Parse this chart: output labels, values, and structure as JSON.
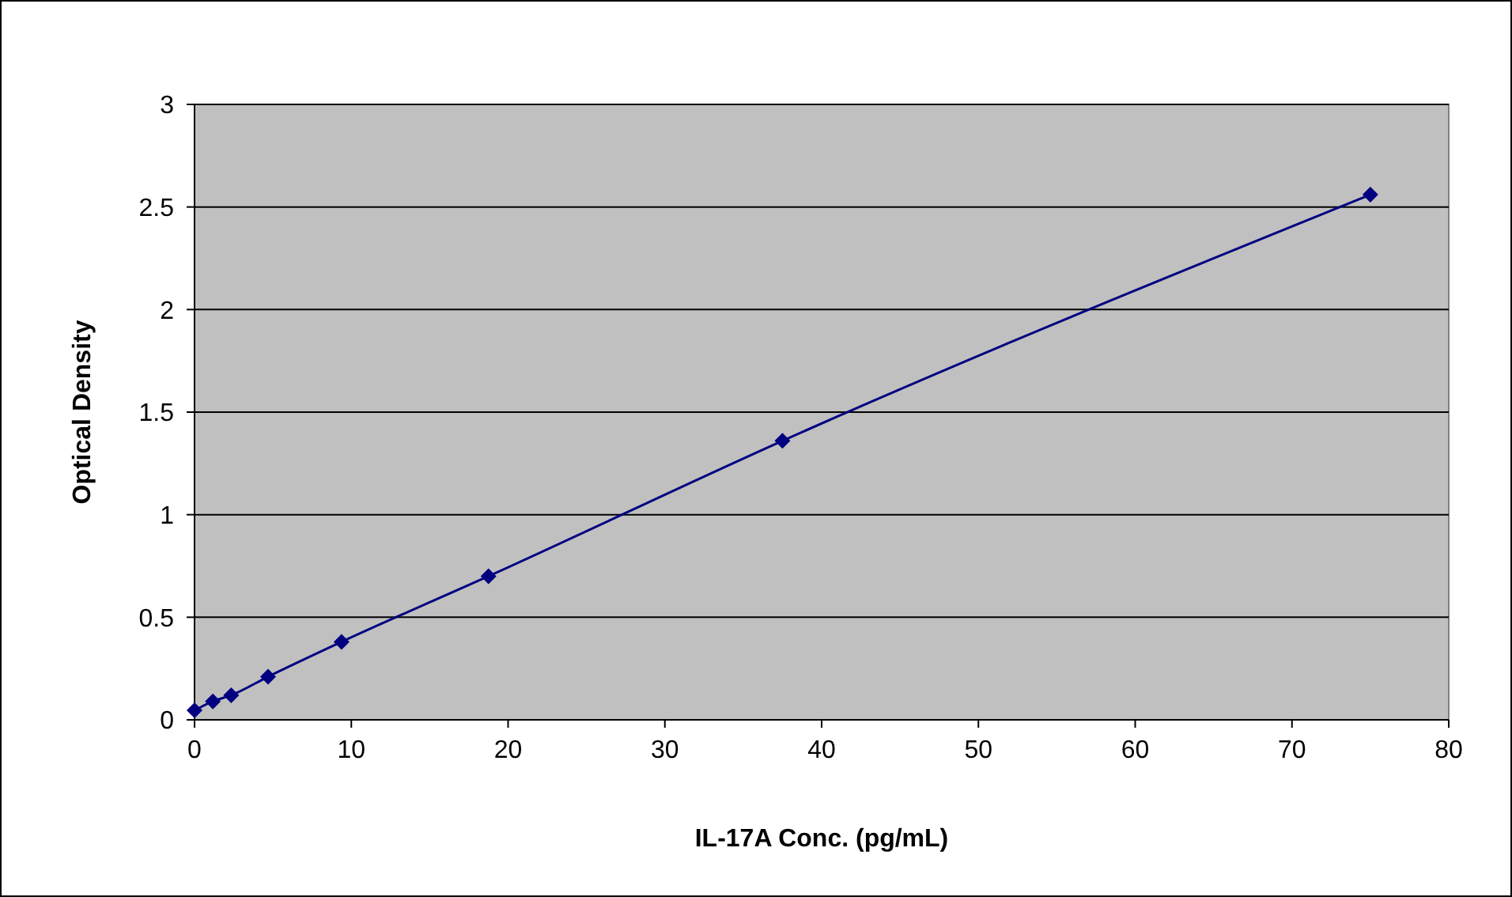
{
  "chart_data": {
    "type": "line",
    "xlabel": "IL-17A Conc. (pg/mL)",
    "ylabel": "Optical Density",
    "x": [
      0,
      1.17,
      2.34,
      4.69,
      9.38,
      18.75,
      37.5,
      75
    ],
    "series": [
      {
        "color": "#000080",
        "values": [
          0.046,
          0.09,
          0.12,
          0.21,
          0.38,
          0.7,
          1.36,
          2.56
        ]
      }
    ],
    "xlim": [
      0,
      80
    ],
    "xticks": [
      0,
      10,
      20,
      30,
      40,
      50,
      60,
      70,
      80
    ],
    "ylim": [
      0,
      3
    ],
    "yticks": [
      0,
      0.5,
      1,
      1.5,
      2,
      2.5,
      3
    ],
    "grid": "y",
    "marker": "diamond",
    "line_style": "solid"
  }
}
